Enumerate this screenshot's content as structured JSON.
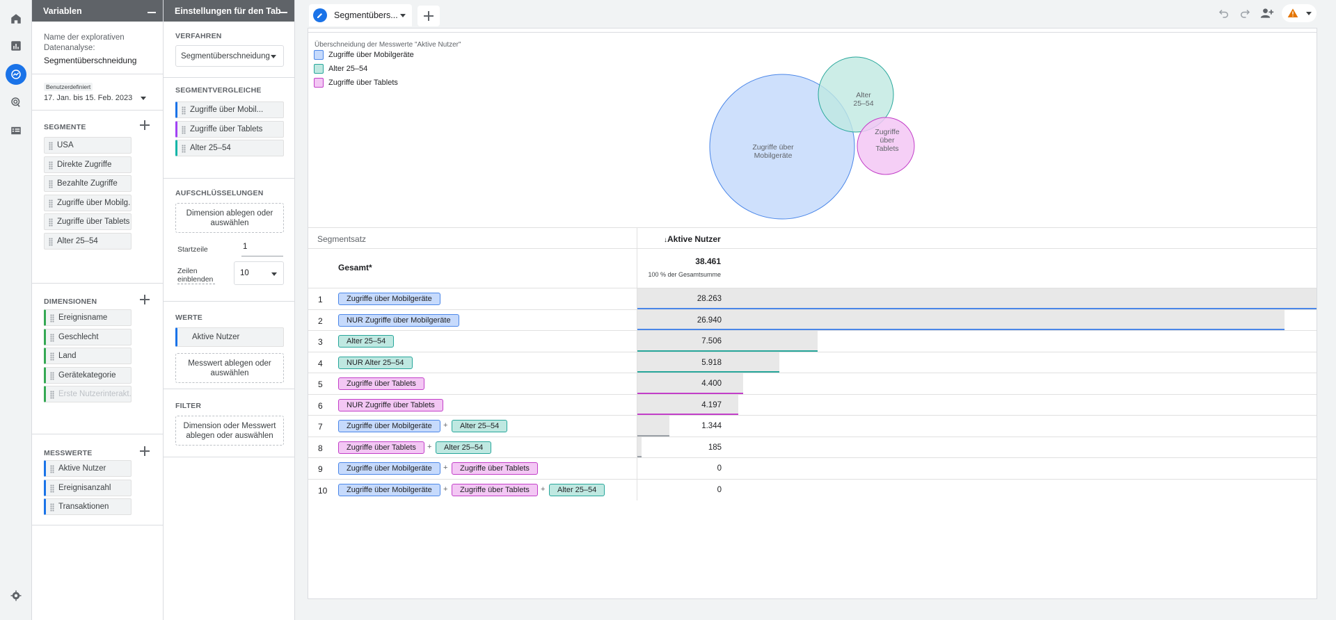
{
  "rail": {
    "icons": [
      "home-icon",
      "reports-icon",
      "explore-icon",
      "advertising-icon",
      "list-icon",
      "settings-icon"
    ]
  },
  "variables": {
    "header": "Variablen",
    "name_label": "Name der explorativen Datenanalyse:",
    "name_value": "Segmentüberschneidung",
    "date_badge": "Benutzerdefiniert",
    "date_range": "17. Jan. bis 15. Feb. 2023",
    "segments_title": "SEGMENTE",
    "segments": [
      "USA",
      "Direkte Zugriffe",
      "Bezahlte Zugriffe",
      "Zugriffe über Mobilg...",
      "Zugriffe über Tablets",
      "Alter 25–54"
    ],
    "dimensions_title": "DIMENSIONEN",
    "dimensions": [
      "Ereignisname",
      "Geschlecht",
      "Land",
      "Gerätekategorie",
      "Erste Nutzerinterakt..."
    ],
    "metrics_title": "MESSWERTE",
    "metrics": [
      "Aktive Nutzer",
      "Ereignisanzahl",
      "Transaktionen"
    ]
  },
  "settings": {
    "header": "Einstellungen für den Tab",
    "method_title": "VERFAHREN",
    "method_value": "Segmentüberschneidung",
    "seg_compare_title": "SEGMENTVERGLEICHE",
    "seg_compare": [
      "Zugriffe über Mobil...",
      "Zugriffe über Tablets",
      "Alter 25–54"
    ],
    "breakdown_title": "AUFSCHLÜSSELUNGEN",
    "breakdown_drop": "Dimension ablegen oder auswählen",
    "start_row_label": "Startzeile",
    "start_row_value": "1",
    "show_rows_label": "Zeilen einblenden",
    "show_rows_value": "10",
    "values_title": "WERTE",
    "values_chip": "Aktive Nutzer",
    "values_drop": "Messwert ablegen oder auswählen",
    "filter_title": "FILTER",
    "filter_drop": "Dimension oder Messwert ablegen oder auswählen"
  },
  "tab": {
    "name": "Segmentübers..."
  },
  "venn": {
    "title": "Überschneidung der Messwerte \"Aktive Nutzer\"",
    "legend": [
      {
        "label": "Zugriffe über Mobilgeräte",
        "color": "#c6dafc",
        "border": "#4a86e8"
      },
      {
        "label": "Alter 25–54",
        "color": "#bfe8e1",
        "border": "#26a69a"
      },
      {
        "label": "Zugriffe über Tablets",
        "color": "#f3c7f4",
        "border": "#c23ec8"
      }
    ],
    "circles": [
      {
        "label_lines": [
          "Zugriffe über",
          "Mobilgeräte"
        ]
      },
      {
        "label_lines": [
          "Alter",
          "25–54"
        ]
      },
      {
        "label_lines": [
          "Zugriffe",
          "über",
          "Tablets"
        ]
      }
    ]
  },
  "table": {
    "col_segment": "Segmentsatz",
    "col_metric": "Aktive Nutzer",
    "total_label": "Gesamt*",
    "total_value": "38.461",
    "total_sub": "100 % der Gesamtsumme",
    "max_value": 28263,
    "rows": [
      {
        "num": "1",
        "chips": [
          {
            "text": "Zugriffe über Mobilgeräte",
            "c": "blue"
          }
        ],
        "value": "28.263",
        "n": 28263,
        "line": "#4a86e8"
      },
      {
        "num": "2",
        "chips": [
          {
            "text": "NUR Zugriffe über Mobilgeräte",
            "c": "blue"
          }
        ],
        "value": "26.940",
        "n": 26940,
        "line": "#4a86e8"
      },
      {
        "num": "3",
        "chips": [
          {
            "text": "Alter 25–54",
            "c": "teal"
          }
        ],
        "value": "7.506",
        "n": 7506,
        "line": "#26a69a"
      },
      {
        "num": "4",
        "chips": [
          {
            "text": "NUR Alter 25–54",
            "c": "teal"
          }
        ],
        "value": "5.918",
        "n": 5918,
        "line": "#26a69a"
      },
      {
        "num": "5",
        "chips": [
          {
            "text": "Zugriffe über Tablets",
            "c": "pink"
          }
        ],
        "value": "4.400",
        "n": 4400,
        "line": "#c23ec8"
      },
      {
        "num": "6",
        "chips": [
          {
            "text": "NUR Zugriffe über Tablets",
            "c": "pink"
          }
        ],
        "value": "4.197",
        "n": 4197,
        "line": "#c23ec8"
      },
      {
        "num": "7",
        "chips": [
          {
            "text": "Zugriffe über Mobilgeräte",
            "c": "blue"
          },
          {
            "text": "Alter 25–54",
            "c": "teal"
          }
        ],
        "value": "1.344",
        "n": 1344,
        "line": "#9aa0a6"
      },
      {
        "num": "8",
        "chips": [
          {
            "text": "Zugriffe über Tablets",
            "c": "pink"
          },
          {
            "text": "Alter 25–54",
            "c": "teal"
          }
        ],
        "value": "185",
        "n": 185,
        "line": "#9aa0a6"
      },
      {
        "num": "9",
        "chips": [
          {
            "text": "Zugriffe über Mobilgeräte",
            "c": "blue"
          },
          {
            "text": "Zugriffe über Tablets",
            "c": "pink"
          }
        ],
        "value": "0",
        "n": 0,
        "line": "#9aa0a6"
      },
      {
        "num": "10",
        "chips": [
          {
            "text": "Zugriffe über Mobilgeräte",
            "c": "blue"
          },
          {
            "text": "Zugriffe über Tablets",
            "c": "pink"
          },
          {
            "text": "Alter 25–54",
            "c": "teal"
          }
        ],
        "value": "0",
        "n": 0,
        "line": "#9aa0a6"
      }
    ]
  }
}
